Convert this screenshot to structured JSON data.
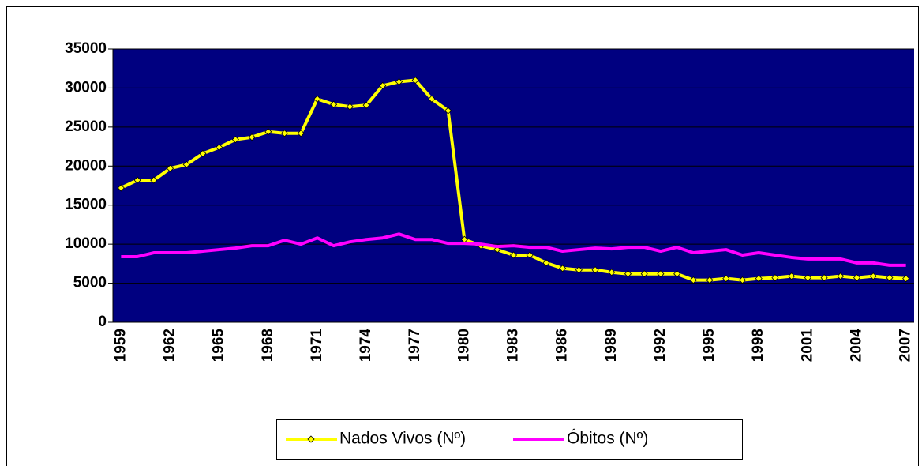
{
  "chart_data": {
    "type": "line",
    "categories": [
      "1959",
      null,
      null,
      "1962",
      null,
      null,
      "1965",
      null,
      null,
      "1968",
      null,
      null,
      "1971",
      null,
      null,
      "1974",
      null,
      null,
      "1977",
      null,
      null,
      "1980",
      null,
      null,
      "1983",
      null,
      null,
      "1986",
      null,
      null,
      "1989",
      null,
      null,
      "1992",
      null,
      null,
      "1995",
      null,
      null,
      "1998",
      null,
      null,
      "2001",
      null,
      null,
      "2004",
      null,
      null,
      "2007"
    ],
    "series": [
      {
        "name": "Nados Vivos (Nº)",
        "color": "#ffff00",
        "marker": "diamond",
        "values": [
          17200,
          18200,
          18200,
          19700,
          20200,
          21600,
          22400,
          23400,
          23700,
          24400,
          24200,
          24200,
          28600,
          27900,
          27600,
          27800,
          30300,
          30800,
          31000,
          28600,
          27100,
          10600,
          9800,
          9300,
          8600,
          8600,
          7600,
          6900,
          6700,
          6700,
          6400,
          6200,
          6200,
          6200,
          6200,
          5400,
          5400,
          5600,
          5400,
          5600,
          5700,
          5900,
          5700,
          5700,
          5900,
          5700,
          5900,
          5700,
          5600
        ]
      },
      {
        "name": "Óbitos (Nº)",
        "color": "#ff00ff",
        "values": [
          8400,
          8400,
          8900,
          8900,
          8900,
          9100,
          9300,
          9500,
          9800,
          9800,
          10500,
          10000,
          10800,
          9800,
          10300,
          10600,
          10800,
          11300,
          10600,
          10600,
          10100,
          10100,
          10000,
          9700,
          9800,
          9600,
          9600,
          9100,
          9300,
          9500,
          9400,
          9600,
          9600,
          9100,
          9600,
          8900,
          9100,
          9300,
          8600,
          8900,
          8600,
          8300,
          8100,
          8100,
          8100,
          7600,
          7600,
          7300,
          7300
        ]
      }
    ],
    "ylim": [
      0,
      35000
    ],
    "yticks": [
      0,
      5000,
      10000,
      15000,
      20000,
      25000,
      30000,
      35000
    ],
    "grid": true,
    "plot_background": "#000080",
    "legend": "bottom"
  }
}
